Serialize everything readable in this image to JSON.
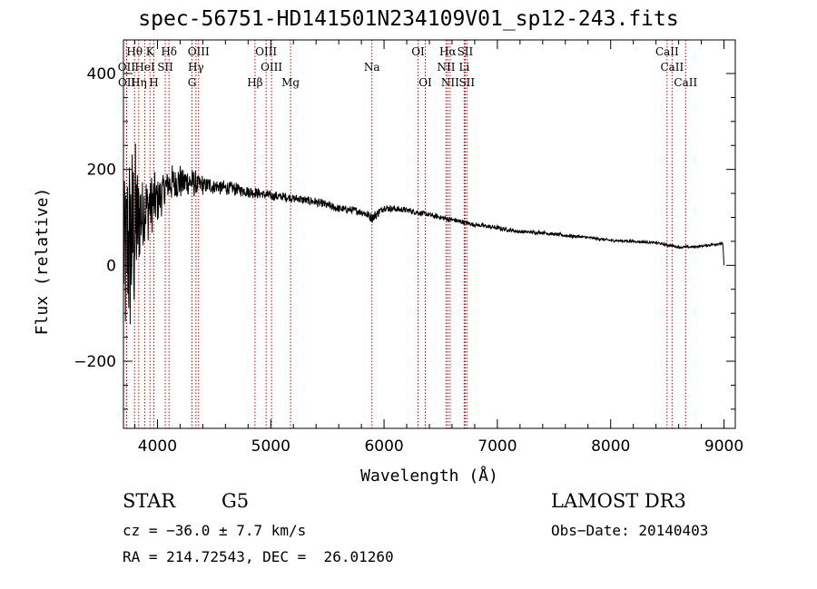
{
  "chart_data": {
    "type": "line",
    "title": "spec-56751-HD141501N234109V01_sp12-243.fits",
    "xlabel": "Wavelength (Å)",
    "ylabel": "Flux (relative)",
    "xlim": [
      3700,
      9100
    ],
    "ylim": [
      -340,
      470
    ],
    "xticks": [
      4000,
      5000,
      6000,
      7000,
      8000,
      9000
    ],
    "yticks": [
      -200,
      0,
      200,
      400
    ],
    "colors": {
      "spectrum": "#000000",
      "line_marker": "#cc0000",
      "axis": "#000000"
    },
    "spectrum_envelope": {
      "x": [
        3700,
        3750,
        3800,
        3850,
        3900,
        3950,
        4000,
        4100,
        4200,
        4300,
        4400,
        4500,
        4700,
        4900,
        5000,
        5200,
        5400,
        5600,
        5800,
        5900,
        6000,
        6200,
        6400,
        6600,
        6800,
        7000,
        7200,
        7400,
        7600,
        7800,
        8000,
        8200,
        8400,
        8600,
        8700,
        8800,
        8950,
        8990,
        9000
      ],
      "mean": [
        20,
        40,
        70,
        100,
        120,
        130,
        140,
        170,
        175,
        172,
        168,
        165,
        158,
        150,
        145,
        140,
        132,
        118,
        112,
        100,
        120,
        115,
        105,
        95,
        85,
        78,
        70,
        68,
        62,
        58,
        52,
        50,
        47,
        38,
        38,
        40,
        45,
        45,
        0
      ],
      "noise": [
        220,
        220,
        200,
        120,
        80,
        65,
        55,
        40,
        38,
        32,
        22,
        18,
        14,
        12,
        11,
        10,
        10,
        9,
        9,
        12,
        8,
        7,
        6,
        6,
        5,
        5,
        4,
        4,
        4,
        3,
        3,
        3,
        3,
        3,
        3,
        3,
        3,
        3,
        0
      ]
    },
    "lines": [
      {
        "label": "Hθ",
        "wave": 3798,
        "row": 0
      },
      {
        "label": "OII",
        "wave": 3727,
        "row": 1
      },
      {
        "label": "OII",
        "wave": 3729,
        "row": 2
      },
      {
        "label": "HeI",
        "wave": 3889,
        "row": 1
      },
      {
        "label": "Hη",
        "wave": 3835,
        "row": 2
      },
      {
        "label": "K",
        "wave": 3934,
        "row": 0
      },
      {
        "label": "H",
        "wave": 3968,
        "row": 2
      },
      {
        "label": "SII",
        "wave": 4069,
        "row": 1
      },
      {
        "label": "Hδ",
        "wave": 4102,
        "row": 0
      },
      {
        "label": "OIII",
        "wave": 4363,
        "row": 0
      },
      {
        "label": "Hγ",
        "wave": 4340,
        "row": 1
      },
      {
        "label": "G",
        "wave": 4305,
        "row": 2
      },
      {
        "label": "Hβ",
        "wave": 4861,
        "row": 2
      },
      {
        "label": "OIII",
        "wave": 4959,
        "row": 0
      },
      {
        "label": "OIII",
        "wave": 5007,
        "row": 1
      },
      {
        "label": "Mg",
        "wave": 5175,
        "row": 2
      },
      {
        "label": "Na",
        "wave": 5893,
        "row": 1
      },
      {
        "label": "OI",
        "wave": 6300,
        "row": 0
      },
      {
        "label": "OI",
        "wave": 6364,
        "row": 2
      },
      {
        "label": "NII",
        "wave": 6548,
        "row": 1
      },
      {
        "label": "NII",
        "wave": 6583,
        "row": 2
      },
      {
        "label": "Hα",
        "wave": 6563,
        "row": 0
      },
      {
        "label": "SII",
        "wave": 6716,
        "row": 0
      },
      {
        "label": "Li",
        "wave": 6708,
        "row": 1
      },
      {
        "label": "SII",
        "wave": 6731,
        "row": 2
      },
      {
        "label": "CaII",
        "wave": 8498,
        "row": 0
      },
      {
        "label": "CaII",
        "wave": 8542,
        "row": 1
      },
      {
        "label": "CaII",
        "wave": 8662,
        "row": 2
      }
    ]
  },
  "info": {
    "object_class": "STAR",
    "subclass": "G5",
    "survey": "LAMOST DR3",
    "cz": "cz = −36.0 ± 7.7 km/s",
    "obs_date": "Obs−Date: 20140403",
    "coords": "RA = 214.72543, DEC =  26.01260"
  }
}
